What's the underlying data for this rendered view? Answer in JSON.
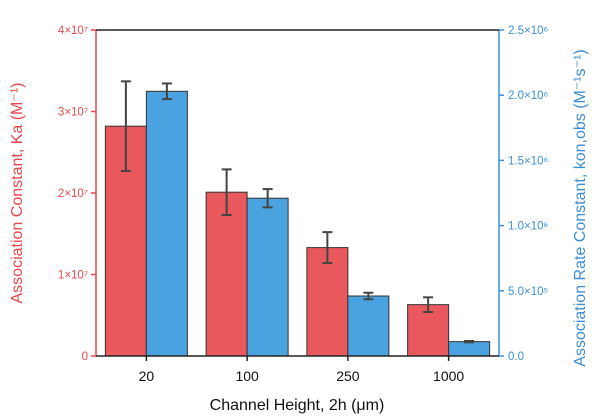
{
  "chart_data": {
    "type": "bar",
    "categories": [
      "20",
      "100",
      "250",
      "1000"
    ],
    "xlabel": "Channel Height, 2h (μm)",
    "series": [
      {
        "axis": "left",
        "color": "#e8585c",
        "label_color": "#e8474c",
        "values": [
          28200000,
          20100000,
          13300000,
          6300000
        ],
        "errors": [
          5500000,
          2800000,
          1900000,
          900000
        ]
      },
      {
        "axis": "right",
        "color": "#4aa3e0",
        "label_color": "#3b8fd6",
        "values": [
          2030000,
          1210000,
          460000,
          110000
        ],
        "errors": [
          60000,
          70000,
          25000,
          5000
        ]
      }
    ],
    "y_left": {
      "label": "Association Constant, Ka (M⁻¹)",
      "range": [
        0,
        40000000
      ],
      "ticks": [
        {
          "value": 0,
          "label": "0"
        },
        {
          "value": 10000000,
          "label": "1×10⁷"
        },
        {
          "value": 20000000,
          "label": "2×10⁷"
        },
        {
          "value": 30000000,
          "label": "3×10⁷"
        },
        {
          "value": 40000000,
          "label": "4×10⁷"
        }
      ]
    },
    "y_right": {
      "label": "Association Rate Constant, kon,obs (M⁻¹s⁻¹)",
      "range": [
        0,
        2500000
      ],
      "ticks": [
        {
          "value": 0,
          "label": "0.0"
        },
        {
          "value": 500000,
          "label": "5.0×10⁵"
        },
        {
          "value": 1000000,
          "label": "1.0×10⁶"
        },
        {
          "value": 1500000,
          "label": "1.5×10⁶"
        },
        {
          "value": 2000000,
          "label": "2.0×10⁶"
        },
        {
          "value": 2500000,
          "label": "2.5×10⁶"
        }
      ]
    },
    "grid": false,
    "legend": "none"
  }
}
